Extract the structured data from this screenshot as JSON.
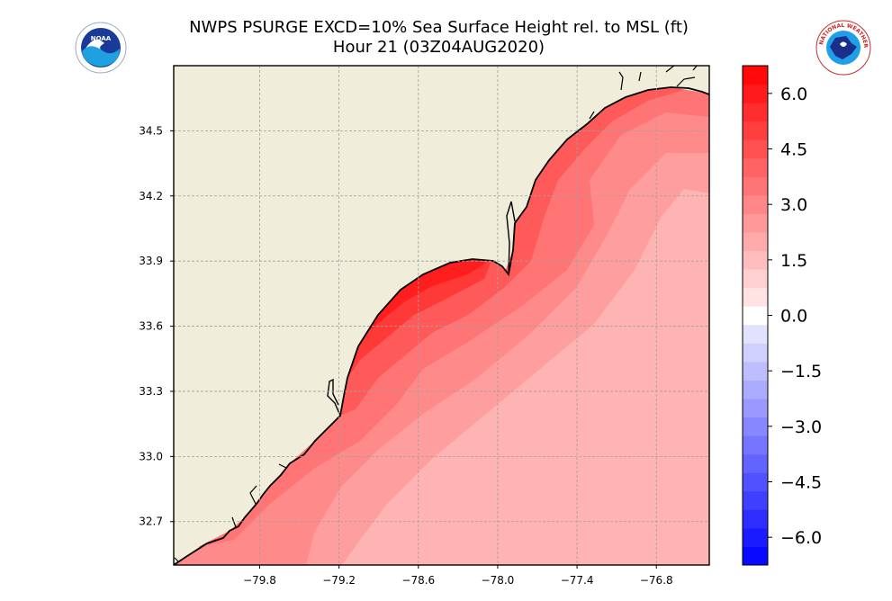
{
  "title": {
    "line1": "NWPS PSURGE EXCD=10% Sea Surface Height rel. to MSL (ft)",
    "line2": "Hour 21 (03Z04AUG2020)"
  },
  "logos": {
    "left": {
      "icon": "noaa-logo",
      "text": "NOAA"
    },
    "right": {
      "icon": "nws-logo",
      "text": "NATIONAL WEATHER SERVICE"
    }
  },
  "map": {
    "lon_range": [
      -80.45,
      -76.4
    ],
    "lat_range": [
      32.5,
      34.8
    ],
    "grid": true,
    "land_color": "#f0eeda",
    "x_ticks": [
      -79.8,
      -79.2,
      -78.6,
      -78.0,
      -77.4,
      -76.8
    ],
    "x_tick_labels": [
      "−79.8",
      "−79.2",
      "−78.6",
      "−78.0",
      "−77.4",
      "−76.8"
    ],
    "y_ticks": [
      34.5,
      34.2,
      33.9,
      33.6,
      33.3,
      33.0,
      32.7
    ],
    "y_tick_labels": [
      "34.5",
      "34.2",
      "33.9",
      "33.6",
      "33.3",
      "33.0",
      "32.7"
    ]
  },
  "colorbar": {
    "range": [
      -6.75,
      6.75
    ],
    "step": 0.5,
    "ticks": [
      6.0,
      4.5,
      3.0,
      1.5,
      0.0,
      -1.5,
      -3.0,
      -4.5,
      -6.0
    ],
    "tick_labels": [
      "6.0",
      "4.5",
      "3.0",
      "1.5",
      "0.0",
      "−1.5",
      "−3.0",
      "−4.5",
      "−6.0"
    ],
    "neg_color": "#0000ff",
    "pos_color": "#ff0000"
  }
}
